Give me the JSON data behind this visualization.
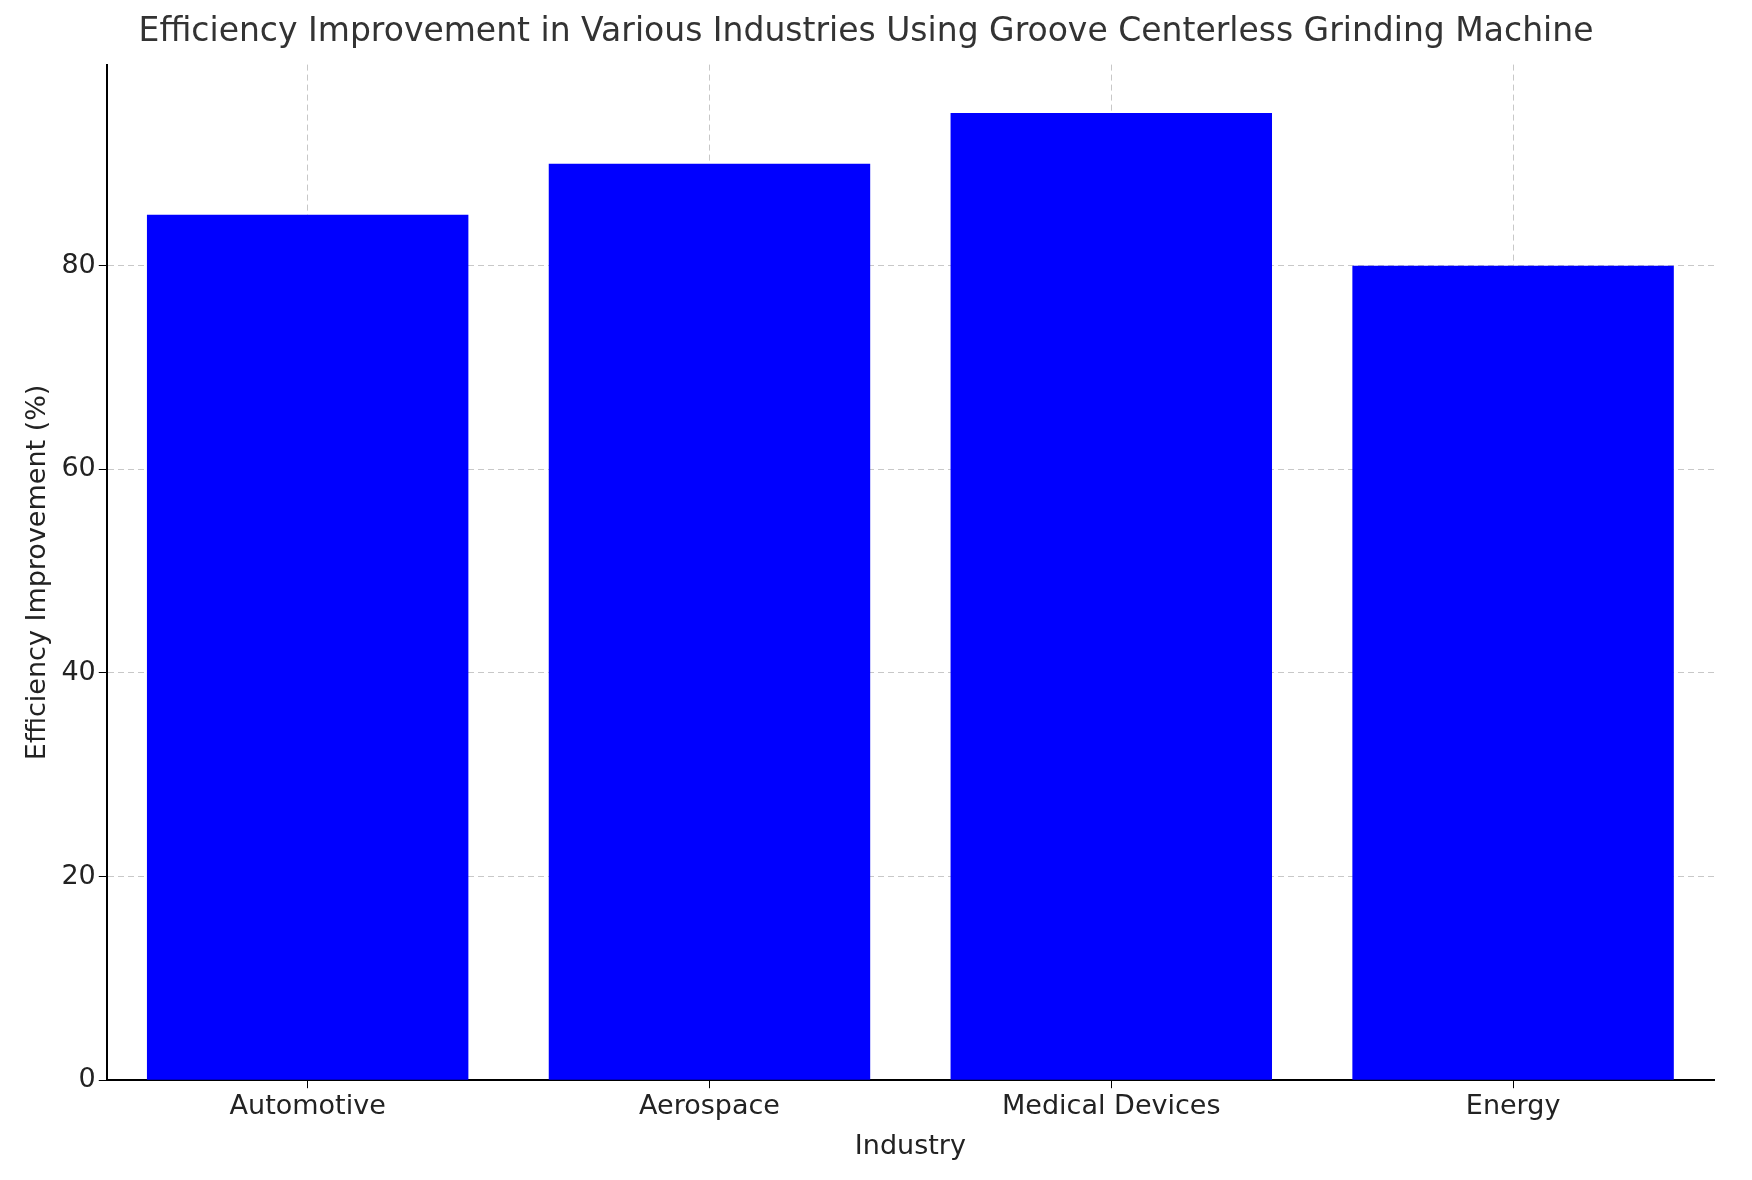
{
  "chart_data": {
    "type": "bar",
    "title": "Efficiency Improvement in Various Industries Using Groove Centerless Grinding Machine",
    "xlabel": "Industry",
    "ylabel": "Efficiency Improvement (%)",
    "categories": [
      "Automotive",
      "Aerospace",
      "Medical Devices",
      "Energy"
    ],
    "values": [
      85,
      90,
      95,
      80
    ],
    "color": "#0000ff",
    "ylim": [
      0,
      99.75
    ],
    "yticks": [
      0,
      20,
      40,
      60,
      80
    ],
    "grid": true,
    "legend": false
  }
}
